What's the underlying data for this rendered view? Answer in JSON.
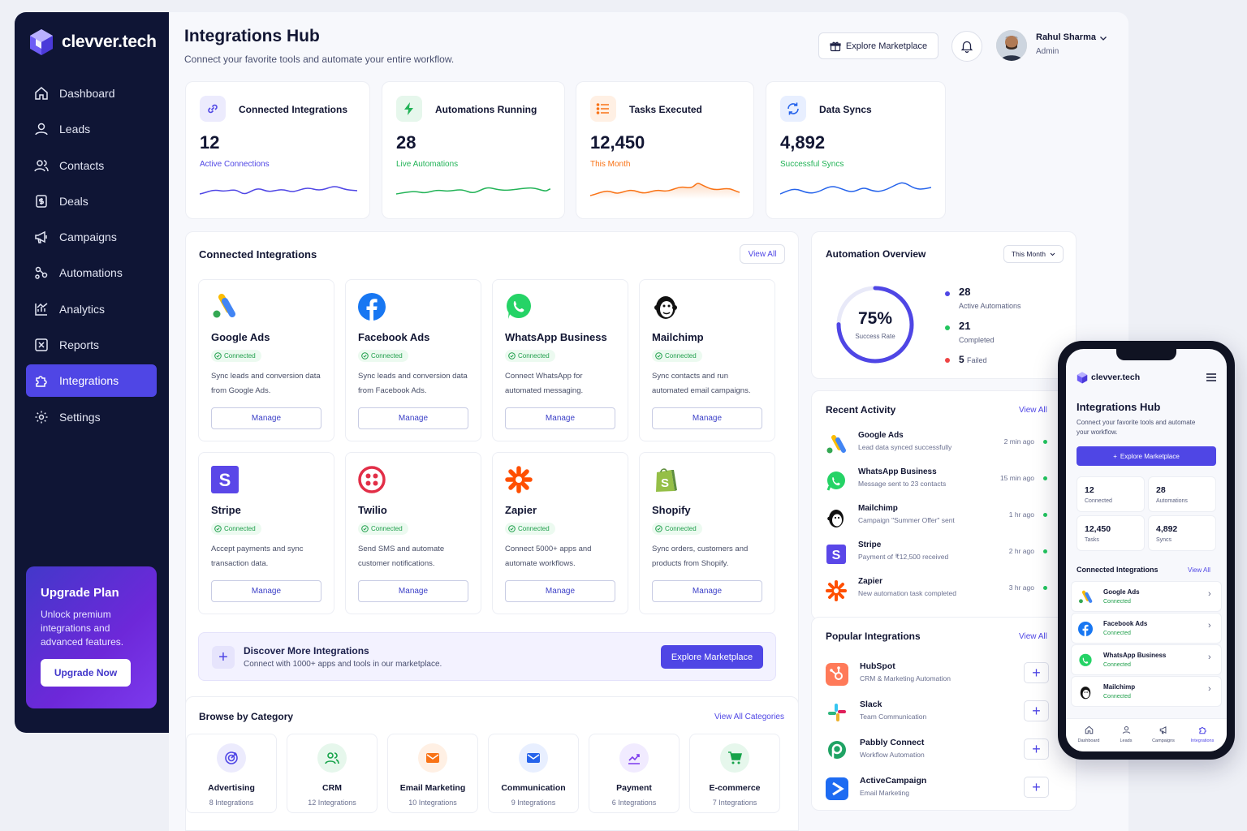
{
  "brand": {
    "name": "clevver.tech"
  },
  "sidebar": {
    "items": [
      {
        "label": "Dashboard",
        "icon": "home-icon"
      },
      {
        "label": "Leads",
        "icon": "user-icon"
      },
      {
        "label": "Contacts",
        "icon": "contacts-icon"
      },
      {
        "label": "Deals",
        "icon": "deals-icon"
      },
      {
        "label": "Campaigns",
        "icon": "megaphone-icon"
      },
      {
        "label": "Automations",
        "icon": "automation-icon"
      },
      {
        "label": "Analytics",
        "icon": "analytics-icon"
      },
      {
        "label": "Reports",
        "icon": "report-icon"
      },
      {
        "label": "Integrations",
        "icon": "puzzle-icon",
        "active": true
      },
      {
        "label": "Settings",
        "icon": "gear-icon"
      }
    ],
    "upgrade": {
      "title": "Upgrade Plan",
      "text": "Unlock premium integrations and advanced features.",
      "button": "Upgrade Now"
    }
  },
  "header": {
    "title": "Integrations Hub",
    "subtitle": "Connect your favorite tools and automate your entire workflow.",
    "explore_label": "Explore Marketplace",
    "user_name": "Rahul Sharma",
    "user_role": "Admin"
  },
  "stats": [
    {
      "title": "Connected Integrations",
      "value": "12",
      "label": "Active Connections",
      "color": "#4f46e5"
    },
    {
      "title": "Automations Running",
      "value": "28",
      "label": "Live Automations",
      "color": "#22b357"
    },
    {
      "title": "Tasks Executed",
      "value": "12,450",
      "label": "This Month",
      "color": "#f97316"
    },
    {
      "title": "Data Syncs",
      "value": "4,892",
      "label": "Successful Syncs",
      "color": "#2563eb"
    }
  ],
  "connected": {
    "title": "Connected Integrations",
    "view_all": "View All",
    "status": "Connected",
    "manage": "Manage",
    "items": [
      {
        "name": "Google Ads",
        "desc": "Sync leads and conversion data from Google Ads."
      },
      {
        "name": "Facebook Ads",
        "desc": "Sync leads and conversion data from Facebook Ads."
      },
      {
        "name": "WhatsApp Business",
        "desc": "Connect WhatsApp for automated messaging."
      },
      {
        "name": "Mailchimp",
        "desc": "Sync contacts and run automated email campaigns."
      },
      {
        "name": "Stripe",
        "desc": "Accept payments and sync transaction data."
      },
      {
        "name": "Twilio",
        "desc": "Send SMS and automate customer notifications."
      },
      {
        "name": "Zapier",
        "desc": "Connect 5000+ apps and automate workflows."
      },
      {
        "name": "Shopify",
        "desc": "Sync orders, customers and products from Shopify."
      }
    ]
  },
  "discover": {
    "title": "Discover More Integrations",
    "text": "Connect with 1000+ apps and tools in our marketplace.",
    "button": "Explore Marketplace"
  },
  "categories": {
    "title": "Browse by Category",
    "view_all": "View All Categories",
    "items": [
      {
        "name": "Advertising",
        "count": "8 Integrations",
        "color": "#4f46e5",
        "bg": "#ecebfd"
      },
      {
        "name": "CRM",
        "count": "12 Integrations",
        "color": "#16a34a",
        "bg": "#e6f7ec"
      },
      {
        "name": "Email Marketing",
        "count": "10 Integrations",
        "color": "#f97316",
        "bg": "#fff0e4"
      },
      {
        "name": "Communication",
        "count": "9 Integrations",
        "color": "#2563eb",
        "bg": "#e8efff"
      },
      {
        "name": "Payment",
        "count": "6 Integrations",
        "color": "#7c3aed",
        "bg": "#f1ebff"
      },
      {
        "name": "E-commerce",
        "count": "7 Integrations",
        "color": "#16a34a",
        "bg": "#e6f7ec"
      }
    ]
  },
  "overview": {
    "title": "Automation Overview",
    "period": "This Month",
    "percent": "75%",
    "percent_value": 0.75,
    "percent_label": "Success Rate",
    "legend": [
      {
        "value": "28",
        "label": "Active Automations",
        "color": "#4f46e5"
      },
      {
        "value": "21",
        "label": "Completed",
        "color": "#22c55e"
      },
      {
        "value": "5",
        "label": "Failed",
        "color": "#ef4444"
      }
    ]
  },
  "activity": {
    "title": "Recent Activity",
    "view_all": "View All",
    "items": [
      {
        "name": "Google Ads",
        "desc": "Lead data synced successfully",
        "time": "2 min ago"
      },
      {
        "name": "WhatsApp Business",
        "desc": "Message sent to 23 contacts",
        "time": "15 min ago"
      },
      {
        "name": "Mailchimp",
        "desc": "Campaign \"Summer Offer\" sent",
        "time": "1 hr ago"
      },
      {
        "name": "Stripe",
        "desc": "Payment of ₹12,500 received",
        "time": "2 hr ago"
      },
      {
        "name": "Zapier",
        "desc": "New automation task completed",
        "time": "3 hr ago"
      }
    ]
  },
  "popular": {
    "title": "Popular Integrations",
    "view_all": "View All",
    "items": [
      {
        "name": "HubSpot",
        "desc": "CRM & Marketing Automation"
      },
      {
        "name": "Slack",
        "desc": "Team Communication"
      },
      {
        "name": "Pabbly Connect",
        "desc": "Workflow Automation"
      },
      {
        "name": "ActiveCampaign",
        "desc": "Email Marketing"
      }
    ]
  },
  "mobile": {
    "brand": "clevver.tech",
    "title": "Integrations Hub",
    "subtitle": "Connect your favorite tools and automate your workflow.",
    "explore": "Explore Marketplace",
    "stats": [
      {
        "value": "12",
        "label": "Connected"
      },
      {
        "value": "28",
        "label": "Automations"
      },
      {
        "value": "12,450",
        "label": "Tasks"
      },
      {
        "value": "4,892",
        "label": "Syncs"
      }
    ],
    "section": "Connected Integrations",
    "view_all": "View All",
    "status": "Connected",
    "items": [
      {
        "name": "Google Ads"
      },
      {
        "name": "Facebook Ads"
      },
      {
        "name": "WhatsApp Business"
      },
      {
        "name": "Mailchimp"
      }
    ],
    "tabs": [
      {
        "label": "Dashboard"
      },
      {
        "label": "Leads"
      },
      {
        "label": "Campaigns"
      },
      {
        "label": "Integrations"
      }
    ]
  }
}
